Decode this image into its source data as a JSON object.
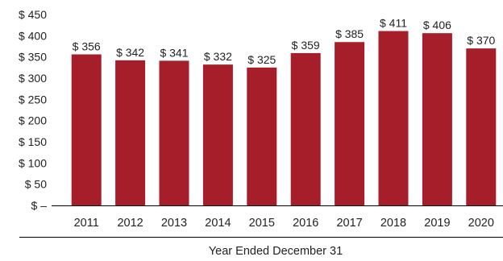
{
  "chart_data": {
    "type": "bar",
    "title": "",
    "xlabel": "Year Ended December 31",
    "ylabel": "",
    "categories": [
      "2011",
      "2012",
      "2013",
      "2014",
      "2015",
      "2016",
      "2017",
      "2018",
      "2019",
      "2020"
    ],
    "values": [
      356,
      342,
      341,
      332,
      325,
      359,
      385,
      411,
      406,
      370
    ],
    "data_labels": [
      "$ 356",
      "$ 342",
      "$ 341",
      "$ 332",
      "$ 325",
      "$ 359",
      "$ 385",
      "$ 411",
      "$ 406",
      "$ 370"
    ],
    "ylim": [
      0,
      450
    ],
    "yticks": [
      0,
      50,
      100,
      150,
      200,
      250,
      300,
      350,
      400,
      450
    ],
    "ytick_labels": [
      "$ –",
      "$ 50",
      "$ 100",
      "$ 150",
      "$ 200",
      "$ 250",
      "$ 300",
      "$ 350",
      "$ 400",
      "$ 450"
    ],
    "grid": false,
    "legend": "none",
    "colors": {
      "bar": "#A51E2A",
      "axis": "#000000",
      "text": "#222222"
    }
  }
}
